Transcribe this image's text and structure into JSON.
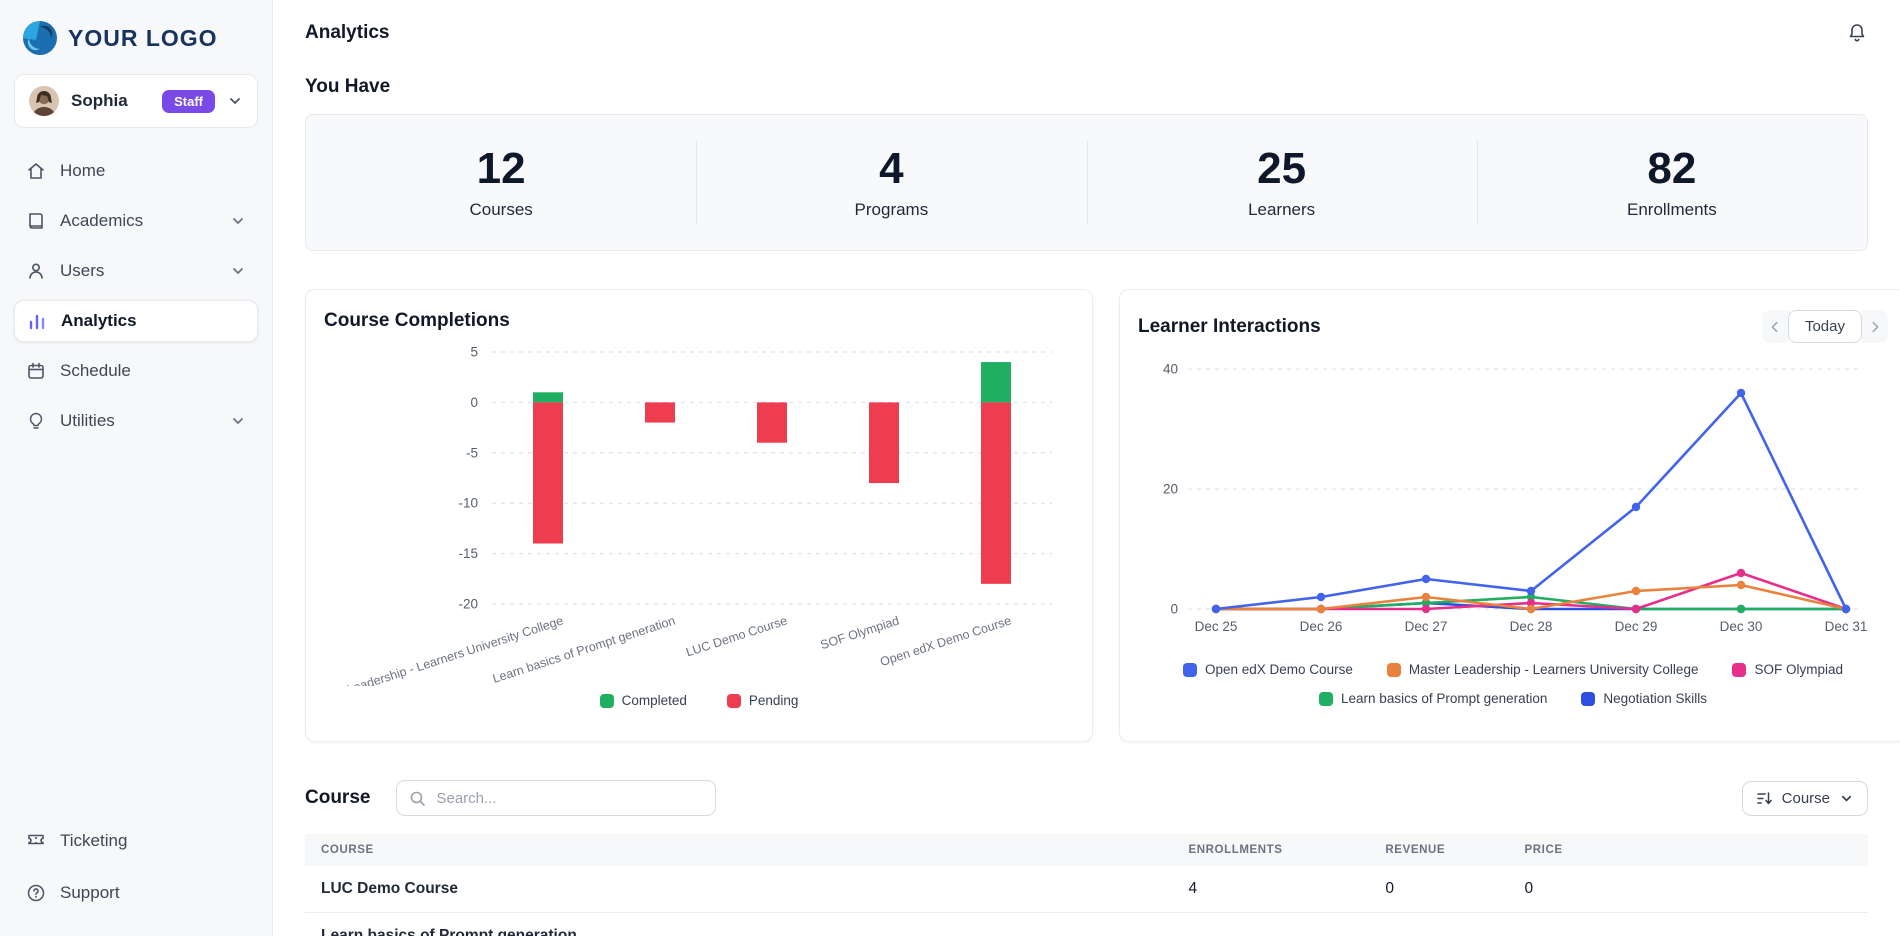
{
  "app": {
    "logo_text": "YOUR LOGO"
  },
  "sidebar": {
    "user": {
      "name": "Sophia",
      "role_badge": "Staff"
    },
    "items": [
      {
        "label": "Home"
      },
      {
        "label": "Academics"
      },
      {
        "label": "Users"
      },
      {
        "label": "Analytics"
      },
      {
        "label": "Schedule"
      },
      {
        "label": "Utilities"
      }
    ],
    "bottom_items": [
      {
        "label": "Ticketing"
      },
      {
        "label": "Support"
      }
    ]
  },
  "header": {
    "title": "Analytics"
  },
  "overview": {
    "heading": "You Have",
    "stats": [
      {
        "value": "12",
        "label": "Courses"
      },
      {
        "value": "4",
        "label": "Programs"
      },
      {
        "value": "25",
        "label": "Learners"
      },
      {
        "value": "82",
        "label": "Enrollments"
      }
    ]
  },
  "interactions_controls": {
    "today_label": "Today"
  },
  "chart_data": [
    {
      "type": "bar",
      "title": "Course Completions",
      "categories": [
        "Master Leadership - Learners University College",
        "Learn basics of Prompt generation",
        "LUC Demo Course",
        "SOF Olympiad",
        "Open edX Demo Course"
      ],
      "series": [
        {
          "name": "Completed",
          "color": "#1fae62",
          "values": [
            1,
            0,
            0,
            0,
            4
          ]
        },
        {
          "name": "Pending",
          "color": "#ee3d4e",
          "values": [
            -14,
            -2,
            -4,
            -8,
            -18
          ]
        }
      ],
      "stacked": true,
      "ylim": [
        -20,
        5
      ],
      "yticks": [
        5,
        0,
        -5,
        -10,
        -15,
        -20
      ],
      "grid": true,
      "legend_position": "bottom"
    },
    {
      "type": "line",
      "title": "Learner Interactions",
      "x": [
        "Dec 25",
        "Dec 26",
        "Dec 27",
        "Dec 28",
        "Dec 29",
        "Dec 30",
        "Dec 31"
      ],
      "series": [
        {
          "name": "Open edX Demo Course",
          "color": "#4263eb",
          "values": [
            0,
            2,
            5,
            3,
            17,
            36,
            0
          ]
        },
        {
          "name": "Master Leadership - Learners University College",
          "color": "#e8823c",
          "values": [
            0,
            0,
            2,
            0,
            3,
            4,
            0
          ]
        },
        {
          "name": "SOF Olympiad",
          "color": "#e62e8b",
          "values": [
            0,
            0,
            0,
            1,
            0,
            6,
            0
          ]
        },
        {
          "name": "Learn basics of Prompt generation",
          "color": "#1fae62",
          "values": [
            0,
            0,
            1,
            2,
            0,
            0,
            0
          ]
        },
        {
          "name": "Negotiation Skills",
          "color": "#2d4fe0",
          "values": [
            0,
            0,
            1,
            0,
            0,
            0,
            0
          ]
        }
      ],
      "ylim": [
        0,
        40
      ],
      "yticks": [
        40,
        20,
        0
      ],
      "grid": true,
      "legend_position": "bottom"
    }
  ],
  "course_table": {
    "heading": "Course",
    "search_placeholder": "Search...",
    "sort_button_label": "Course",
    "columns": [
      "COURSE",
      "ENROLLMENTS",
      "REVENUE",
      "PRICE"
    ],
    "rows": [
      {
        "course": "LUC Demo Course",
        "enrollments": "4",
        "revenue": "0",
        "price": "0"
      },
      {
        "course": "Learn basics of Prompt generation",
        "enrollments": "",
        "revenue": "",
        "price": ""
      }
    ]
  },
  "colors": {
    "accent_purple": "#7a4ae8",
    "completed_green": "#1fae62",
    "pending_red": "#ee3d4e",
    "brand_navy": "#17335e"
  }
}
